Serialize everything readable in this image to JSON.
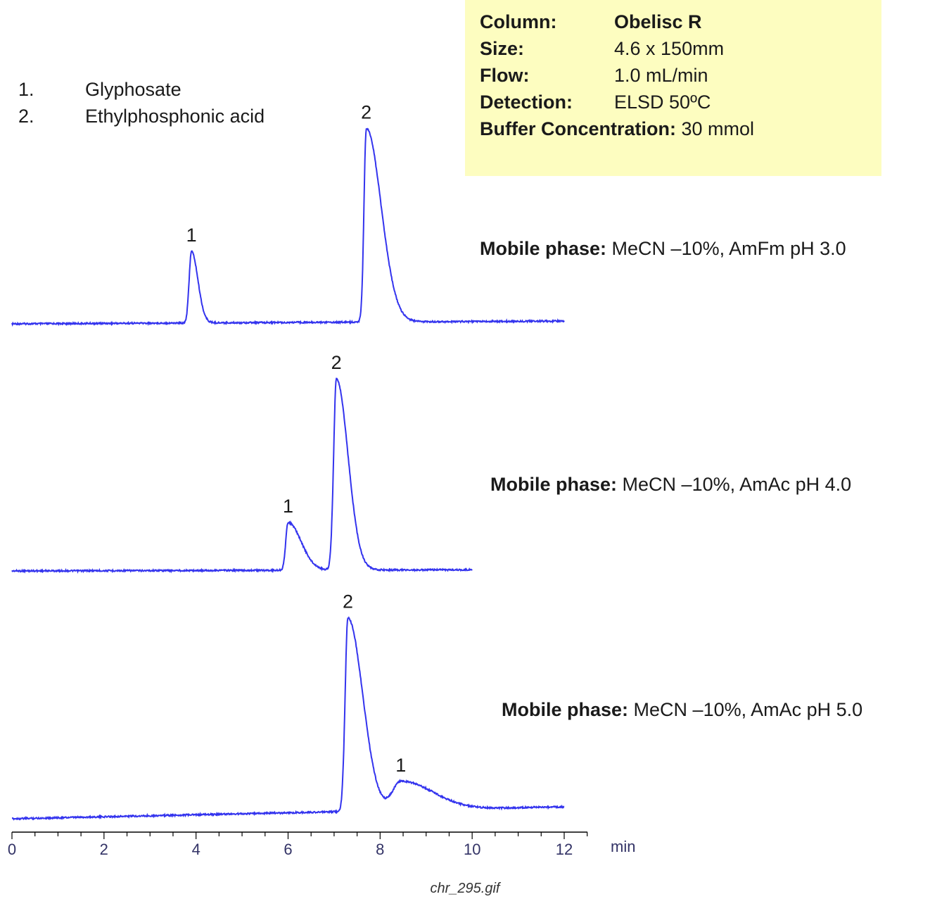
{
  "legend": {
    "items": [
      {
        "num": "1.",
        "name": "Glyphosate"
      },
      {
        "num": "2.",
        "name": "Ethylphosphonic acid"
      }
    ]
  },
  "conditions": {
    "column_label": "Column:",
    "column_value": "Obelisc R",
    "size_label": "Size:",
    "size_value": "4.6 x 150mm",
    "flow_label": "Flow:",
    "flow_value": "1.0 mL/min",
    "detection_label": "Detection:",
    "detection_value": "ELSD 50ºC",
    "buffer_label": "Buffer Concentration:",
    "buffer_value": "30 mmol"
  },
  "caption": "chr_295.gif",
  "colors": {
    "trace": "#3333ee",
    "box": "#fdfdc0",
    "axis": "#000000"
  },
  "chart_data": {
    "type": "line",
    "xlabel": "min",
    "xlim": [
      0,
      12
    ],
    "xticks": [
      "0",
      "2",
      "4",
      "6",
      "8",
      "10",
      "12"
    ],
    "grid": false,
    "series": [
      {
        "mobile_phase_label": "Mobile phase:",
        "mobile_phase_value": "MeCN –10%,  AmFm pH 3.0",
        "x_end": 12.0,
        "peaks": [
          {
            "label": "1",
            "time": 3.9,
            "height": 0.37
          },
          {
            "label": "2",
            "time": 7.7,
            "height": 1.0
          }
        ]
      },
      {
        "mobile_phase_label": "Mobile phase:",
        "mobile_phase_value": "MeCN –10%, AmAc pH 4.0",
        "x_end": 10.0,
        "peaks": [
          {
            "label": "1",
            "time": 6.0,
            "height": 0.25
          },
          {
            "label": "2",
            "time": 7.05,
            "height": 1.0
          }
        ]
      },
      {
        "mobile_phase_label": "Mobile phase:",
        "mobile_phase_value": "MeCN –10%, AmAc pH 5.0",
        "x_end": 12.0,
        "peaks": [
          {
            "label": "2",
            "time": 7.3,
            "height": 1.0
          },
          {
            "label": "1",
            "time": 8.45,
            "height": 0.15
          }
        ]
      }
    ]
  }
}
